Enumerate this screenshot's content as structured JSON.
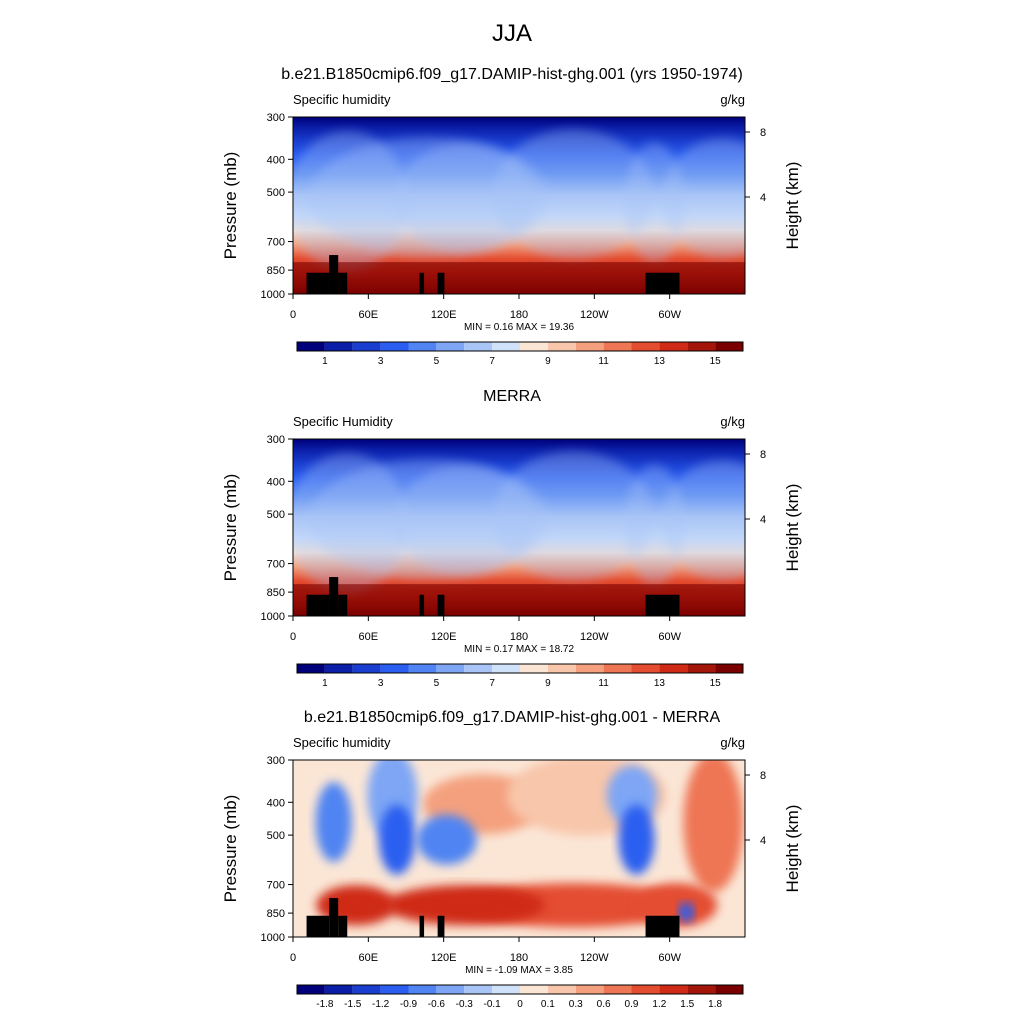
{
  "main_title": "JJA",
  "chart_data": [
    {
      "type": "heatmap",
      "title": "b.e21.B1850cmip6.f09_g17.DAMIP-hist-ghg.001 (yrs 1950-1974)",
      "left_label": "Specific humidity",
      "right_label": "g/kg",
      "ylabel": "Pressure (mb)",
      "right_axis_label": "Height (km)",
      "xlabel": "",
      "x_ticks": [
        "0",
        "60E",
        "120E",
        "180",
        "120W",
        "60W"
      ],
      "y_ticks": [
        "300",
        "400",
        "500",
        "700",
        "850",
        "1000"
      ],
      "right_ticks": [
        "8",
        "4"
      ],
      "stats": "MIN =   0.16  MAX =  19.36",
      "color_levels": [
        0,
        1,
        2,
        3,
        4,
        5,
        6,
        7,
        8,
        9,
        10,
        11,
        12,
        13,
        14,
        15
      ],
      "colorbar_labels": [
        "1",
        "3",
        "5",
        "7",
        "9",
        "11",
        "13",
        "15"
      ]
    },
    {
      "type": "heatmap",
      "title": "MERRA",
      "left_label": "Specific Humidity",
      "right_label": "g/kg",
      "ylabel": "Pressure (mb)",
      "right_axis_label": "Height (km)",
      "xlabel": "",
      "x_ticks": [
        "0",
        "60E",
        "120E",
        "180",
        "120W",
        "60W"
      ],
      "y_ticks": [
        "300",
        "400",
        "500",
        "700",
        "850",
        "1000"
      ],
      "right_ticks": [
        "8",
        "4"
      ],
      "stats": "MIN =   0.17  MAX =  18.72",
      "color_levels": [
        0,
        1,
        2,
        3,
        4,
        5,
        6,
        7,
        8,
        9,
        10,
        11,
        12,
        13,
        14,
        15
      ],
      "colorbar_labels": [
        "1",
        "3",
        "5",
        "7",
        "9",
        "11",
        "13",
        "15"
      ]
    },
    {
      "type": "heatmap",
      "title": "b.e21.B1850cmip6.f09_g17.DAMIP-hist-ghg.001 - MERRA",
      "left_label": "Specific humidity",
      "right_label": "g/kg",
      "ylabel": "Pressure (mb)",
      "right_axis_label": "Height (km)",
      "xlabel": "",
      "x_ticks": [
        "0",
        "60E",
        "120E",
        "180",
        "120W",
        "60W"
      ],
      "y_ticks": [
        "300",
        "400",
        "500",
        "700",
        "850",
        "1000"
      ],
      "right_ticks": [
        "8",
        "4"
      ],
      "stats": "MIN =  -1.09  MAX =   3.85",
      "color_levels": [
        -1.8,
        -1.5,
        -1.2,
        -0.9,
        -0.6,
        -0.3,
        -0.1,
        0,
        0.1,
        0.3,
        0.6,
        0.9,
        1.2,
        1.5,
        1.8
      ],
      "colorbar_labels": [
        "-1.8",
        "-1.5",
        "-1.2",
        "-0.9",
        "-0.6",
        "-0.3",
        "-0.1",
        "0",
        "0.1",
        "0.3",
        "0.6",
        "0.9",
        "1.2",
        "1.5",
        "1.8"
      ]
    }
  ],
  "palette": [
    "#00007a",
    "#0a1ea8",
    "#1a3fd0",
    "#2a5ef0",
    "#5084f2",
    "#7ea6f5",
    "#a9c5f7",
    "#d0e1fa",
    "#fbe6d6",
    "#f8c6aa",
    "#f4a07e",
    "#ee7654",
    "#e44d30",
    "#cf2a16",
    "#a4150a",
    "#7a0000"
  ],
  "colors": {
    "terrain": "#000000"
  }
}
